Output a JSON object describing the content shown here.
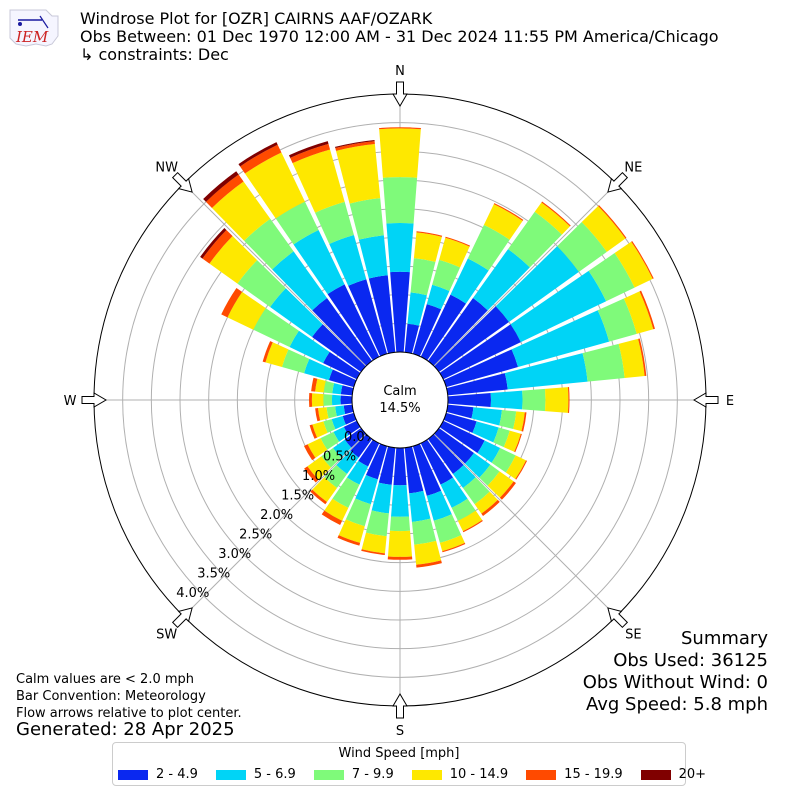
{
  "header": {
    "title": "Windrose Plot for [OZR] CAIRNS AAF/OZARK",
    "period": "Obs Between: 01 Dec 1970 12:00 AM - 31 Dec 2024 11:55 PM America/Chicago",
    "constraints": "↳ constraints: Dec",
    "logo_text": "IEM"
  },
  "notes": {
    "calm_note": "Calm values are < 2.0 mph",
    "bar_convention": "Bar Convention: Meteorology",
    "flow_note": "Flow arrows relative to plot center.",
    "generated": "Generated: 28 Apr 2025"
  },
  "summary": {
    "title": "Summary",
    "obs_used": "Obs Used: 36125",
    "obs_without_wind": "Obs Without Wind: 0",
    "avg_speed": "Avg Speed: 5.8 mph"
  },
  "legend": {
    "title": "Wind Speed [mph]",
    "items": [
      {
        "label": "2 - 4.9",
        "color": "#0a28f0"
      },
      {
        "label": "5 - 6.9",
        "color": "#00d4f6"
      },
      {
        "label": "7 - 9.9",
        "color": "#7ffa7a"
      },
      {
        "label": "10 - 14.9",
        "color": "#fee800"
      },
      {
        "label": "15 - 19.9",
        "color": "#ff4a00"
      },
      {
        "label": "20+",
        "color": "#800000"
      }
    ]
  },
  "chart_data": {
    "type": "windrose",
    "calm_label": "Calm",
    "calm_value": "14.5%",
    "radial_unit": "%",
    "radial_ticks": [
      "0.0%",
      "0.5%",
      "1.0%",
      "1.5%",
      "2.0%",
      "2.5%",
      "3.0%",
      "3.5%",
      "4.0%"
    ],
    "radial_max": 4.5,
    "compass_labels": [
      "N",
      "NE",
      "E",
      "SE",
      "S",
      "SW",
      "W",
      "NW"
    ],
    "direction_step_deg": 10,
    "directions_deg": [
      0,
      10,
      20,
      30,
      40,
      50,
      60,
      70,
      80,
      90,
      100,
      110,
      120,
      130,
      140,
      150,
      160,
      170,
      180,
      190,
      200,
      210,
      220,
      230,
      240,
      250,
      260,
      270,
      280,
      290,
      300,
      310,
      320,
      330,
      340,
      350
    ],
    "speed_bins": [
      "2 - 4.9",
      "5 - 6.9",
      "7 - 9.9",
      "10 - 14.9",
      "15 - 19.9",
      "20+"
    ],
    "cumulative_percent": [
      [
        1.4,
        2.25,
        3.05,
        3.9,
        3.92,
        3.92
      ],
      [
        0.5,
        1.05,
        1.65,
        2.1,
        2.12,
        2.12
      ],
      [
        0.9,
        1.25,
        1.7,
        2.1,
        2.12,
        2.12
      ],
      [
        1.2,
        1.9,
        2.55,
        2.95,
        2.97,
        2.97
      ],
      [
        1.35,
        2.4,
        3.2,
        3.4,
        3.42,
        3.42
      ],
      [
        1.5,
        3.0,
        3.6,
        4.0,
        4.02,
        4.02
      ],
      [
        1.5,
        3.15,
        3.7,
        4.05,
        4.07,
        4.07
      ],
      [
        1.3,
        2.95,
        3.45,
        3.75,
        3.78,
        3.78
      ],
      [
        1.05,
        2.45,
        3.1,
        3.45,
        3.48,
        3.48
      ],
      [
        0.75,
        1.3,
        1.7,
        2.1,
        2.12,
        2.12
      ],
      [
        0.45,
        0.95,
        1.2,
        1.35,
        1.38,
        1.38
      ],
      [
        0.55,
        0.95,
        1.15,
        1.35,
        1.37,
        1.37
      ],
      [
        0.8,
        1.1,
        1.4,
        1.6,
        1.62,
        1.62
      ],
      [
        0.75,
        1.1,
        1.3,
        1.6,
        1.65,
        1.65
      ],
      [
        0.75,
        1.05,
        1.4,
        1.6,
        1.65,
        1.65
      ],
      [
        0.8,
        1.25,
        1.5,
        1.7,
        1.72,
        1.72
      ],
      [
        0.9,
        1.35,
        1.75,
        1.9,
        1.92,
        1.92
      ],
      [
        0.8,
        1.3,
        1.7,
        2.05,
        2.1,
        2.1
      ],
      [
        0.65,
        1.2,
        1.45,
        1.9,
        1.95,
        1.95
      ],
      [
        0.65,
        1.15,
        1.55,
        1.85,
        1.88,
        1.88
      ],
      [
        0.6,
        1.05,
        1.45,
        1.75,
        1.8,
        1.8
      ],
      [
        0.45,
        0.8,
        1.25,
        1.5,
        1.58,
        1.58
      ],
      [
        0.4,
        0.75,
        1.05,
        1.35,
        1.4,
        1.4
      ],
      [
        0.35,
        0.6,
        0.85,
        1.15,
        1.22,
        1.22
      ],
      [
        0.25,
        0.45,
        0.7,
        0.95,
        1.02,
        1.02
      ],
      [
        0.2,
        0.4,
        0.55,
        0.75,
        0.8,
        0.8
      ],
      [
        0.15,
        0.3,
        0.45,
        0.6,
        0.65,
        0.65
      ],
      [
        0.2,
        0.35,
        0.5,
        0.7,
        0.75,
        0.75
      ],
      [
        0.2,
        0.35,
        0.5,
        0.65,
        0.72,
        0.72
      ],
      [
        0.45,
        0.9,
        1.3,
        1.6,
        1.65,
        1.65
      ],
      [
        0.65,
        1.3,
        2.0,
        2.5,
        2.62,
        2.62
      ],
      [
        1.05,
        1.95,
        2.65,
        3.25,
        3.4,
        3.45
      ],
      [
        1.35,
        2.35,
        3.05,
        3.85,
        4.0,
        4.07
      ],
      [
        1.4,
        2.45,
        3.0,
        3.95,
        4.1,
        4.15
      ],
      [
        1.35,
        2.15,
        2.75,
        3.7,
        3.8,
        3.85
      ],
      [
        1.35,
        2.05,
        2.7,
        3.65,
        3.7,
        3.72
      ]
    ]
  }
}
